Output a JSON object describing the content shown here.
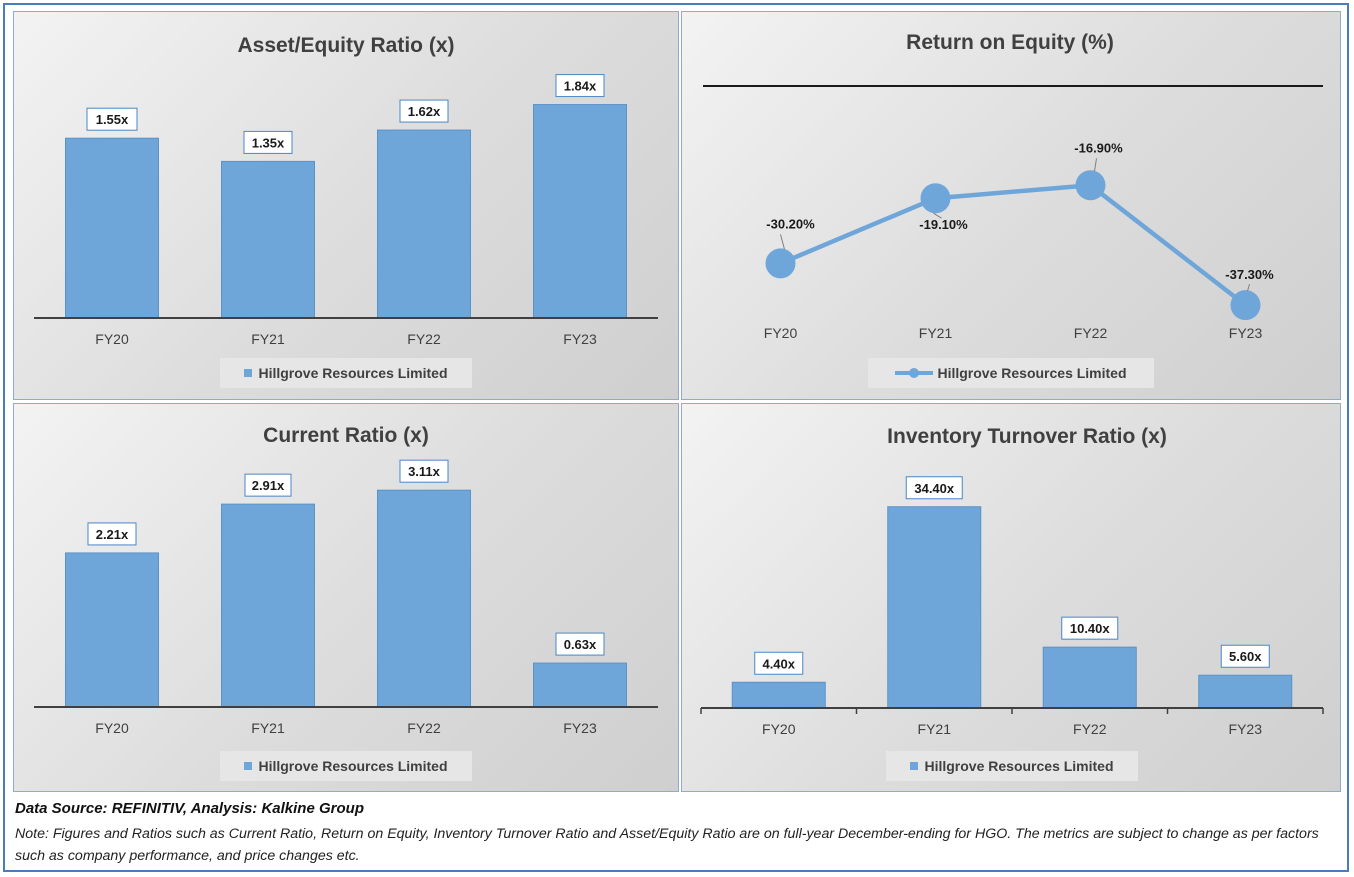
{
  "colors": {
    "bar": "#6fa6da",
    "bar_edge": "#5b92c8",
    "axis": "#404040"
  },
  "chart_data": [
    {
      "type": "bar",
      "title": "Asset/Equity Ratio (x)",
      "categories": [
        "FY20",
        "FY21",
        "FY22",
        "FY23"
      ],
      "series": [
        {
          "name": "Hillgrove Resources Limited",
          "values": [
            1.55,
            1.35,
            1.62,
            1.84
          ]
        }
      ],
      "data_labels": [
        "1.55x",
        "1.35x",
        "1.62x",
        "1.84x"
      ],
      "ylim": [
        0,
        2.0
      ],
      "grid": false,
      "legend": "bottom"
    },
    {
      "type": "line",
      "title": "Return on Equity (%)",
      "categories": [
        "FY20",
        "FY21",
        "FY22",
        "FY23"
      ],
      "series": [
        {
          "name": "Hillgrove Resources Limited",
          "values": [
            -30.2,
            -19.1,
            -16.9,
            -37.3
          ]
        }
      ],
      "data_labels": [
        "-30.20%",
        "-19.10%",
        "-16.90%",
        "-37.30%"
      ],
      "ylim": [
        -40,
        0
      ],
      "grid": false,
      "legend": "bottom"
    },
    {
      "type": "bar",
      "title": "Current Ratio (x)",
      "categories": [
        "FY20",
        "FY21",
        "FY22",
        "FY23"
      ],
      "series": [
        {
          "name": "Hillgrove Resources Limited",
          "values": [
            2.21,
            2.91,
            3.11,
            0.63
          ]
        }
      ],
      "data_labels": [
        "2.21x",
        "2.91x",
        "3.11x",
        "0.63x"
      ],
      "ylim": [
        0,
        3.5
      ],
      "grid": false,
      "legend": "bottom"
    },
    {
      "type": "bar",
      "title": "Inventory Turnover Ratio (x)",
      "categories": [
        "FY20",
        "FY21",
        "FY22",
        "FY23"
      ],
      "series": [
        {
          "name": "Hillgrove Resources Limited",
          "values": [
            4.4,
            34.4,
            10.4,
            5.6
          ]
        }
      ],
      "data_labels": [
        "4.40x",
        "34.40x",
        "10.40x",
        "5.60x"
      ],
      "ylim": [
        0,
        40
      ],
      "grid": false,
      "legend": "bottom"
    }
  ],
  "footer": {
    "source": "Data Source: REFINITIV, Analysis: Kalkine Group",
    "note": "Note: Figures and Ratios such as Current Ratio, Return on Equity, Inventory Turnover Ratio and Asset/Equity Ratio are on full-year December-ending for HGO. The metrics are subject to change as per factors such as company performance, and price changes etc."
  }
}
